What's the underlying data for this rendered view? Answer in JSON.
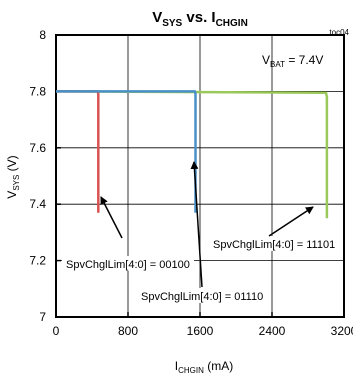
{
  "chart_data": {
    "type": "line",
    "title": {
      "main": "V",
      "main_sub": "SYS",
      "mid": " vs. I",
      "mid_sub": "CHGIN"
    },
    "figure_id": "toc04",
    "xlabel": {
      "main": "I",
      "sub": "CHGIN",
      "unit": " (mA)"
    },
    "ylabel": {
      "main": "V",
      "sub": "SYS",
      "unit": " (V)"
    },
    "xlim": [
      0,
      3200
    ],
    "ylim": [
      7,
      8
    ],
    "xticks": [
      0,
      800,
      1600,
      2400,
      3200
    ],
    "yticks": [
      7,
      7.2,
      7.4,
      7.6,
      7.8,
      8
    ],
    "xtick_labels": [
      "0",
      "800",
      "1600",
      "2400",
      "3200"
    ],
    "ytick_labels": [
      "7",
      "7.2",
      "7.4",
      "7.6",
      "7.8",
      "8"
    ],
    "grid": true,
    "condition": {
      "main": "V",
      "sub": "BAT",
      "rest": " = 7.4V"
    },
    "series": [
      {
        "color": "#d9534f",
        "points": [
          [
            0,
            7.8
          ],
          [
            465,
            7.8
          ],
          [
            470,
            7.79
          ],
          [
            470,
            7.37
          ]
        ]
      },
      {
        "color": "#4a90c8",
        "points": [
          [
            0,
            7.8
          ],
          [
            1545,
            7.8
          ],
          [
            1550,
            7.79
          ],
          [
            1550,
            7.37
          ]
        ]
      },
      {
        "color": "#9bc85a",
        "points": [
          [
            0,
            7.8
          ],
          [
            3000,
            7.795
          ],
          [
            3010,
            7.78
          ],
          [
            3010,
            7.35
          ]
        ]
      }
    ],
    "annotations": [
      {
        "text": "SpvChglLim[4:0] = 00100",
        "color_ref": "#d9534f"
      },
      {
        "text": "SpvChglLim[4:0] = 01110",
        "color_ref": "#4a90c8"
      },
      {
        "text": "SpvChglLim[4:0] = 11101",
        "color_ref": "#9bc85a"
      }
    ]
  }
}
